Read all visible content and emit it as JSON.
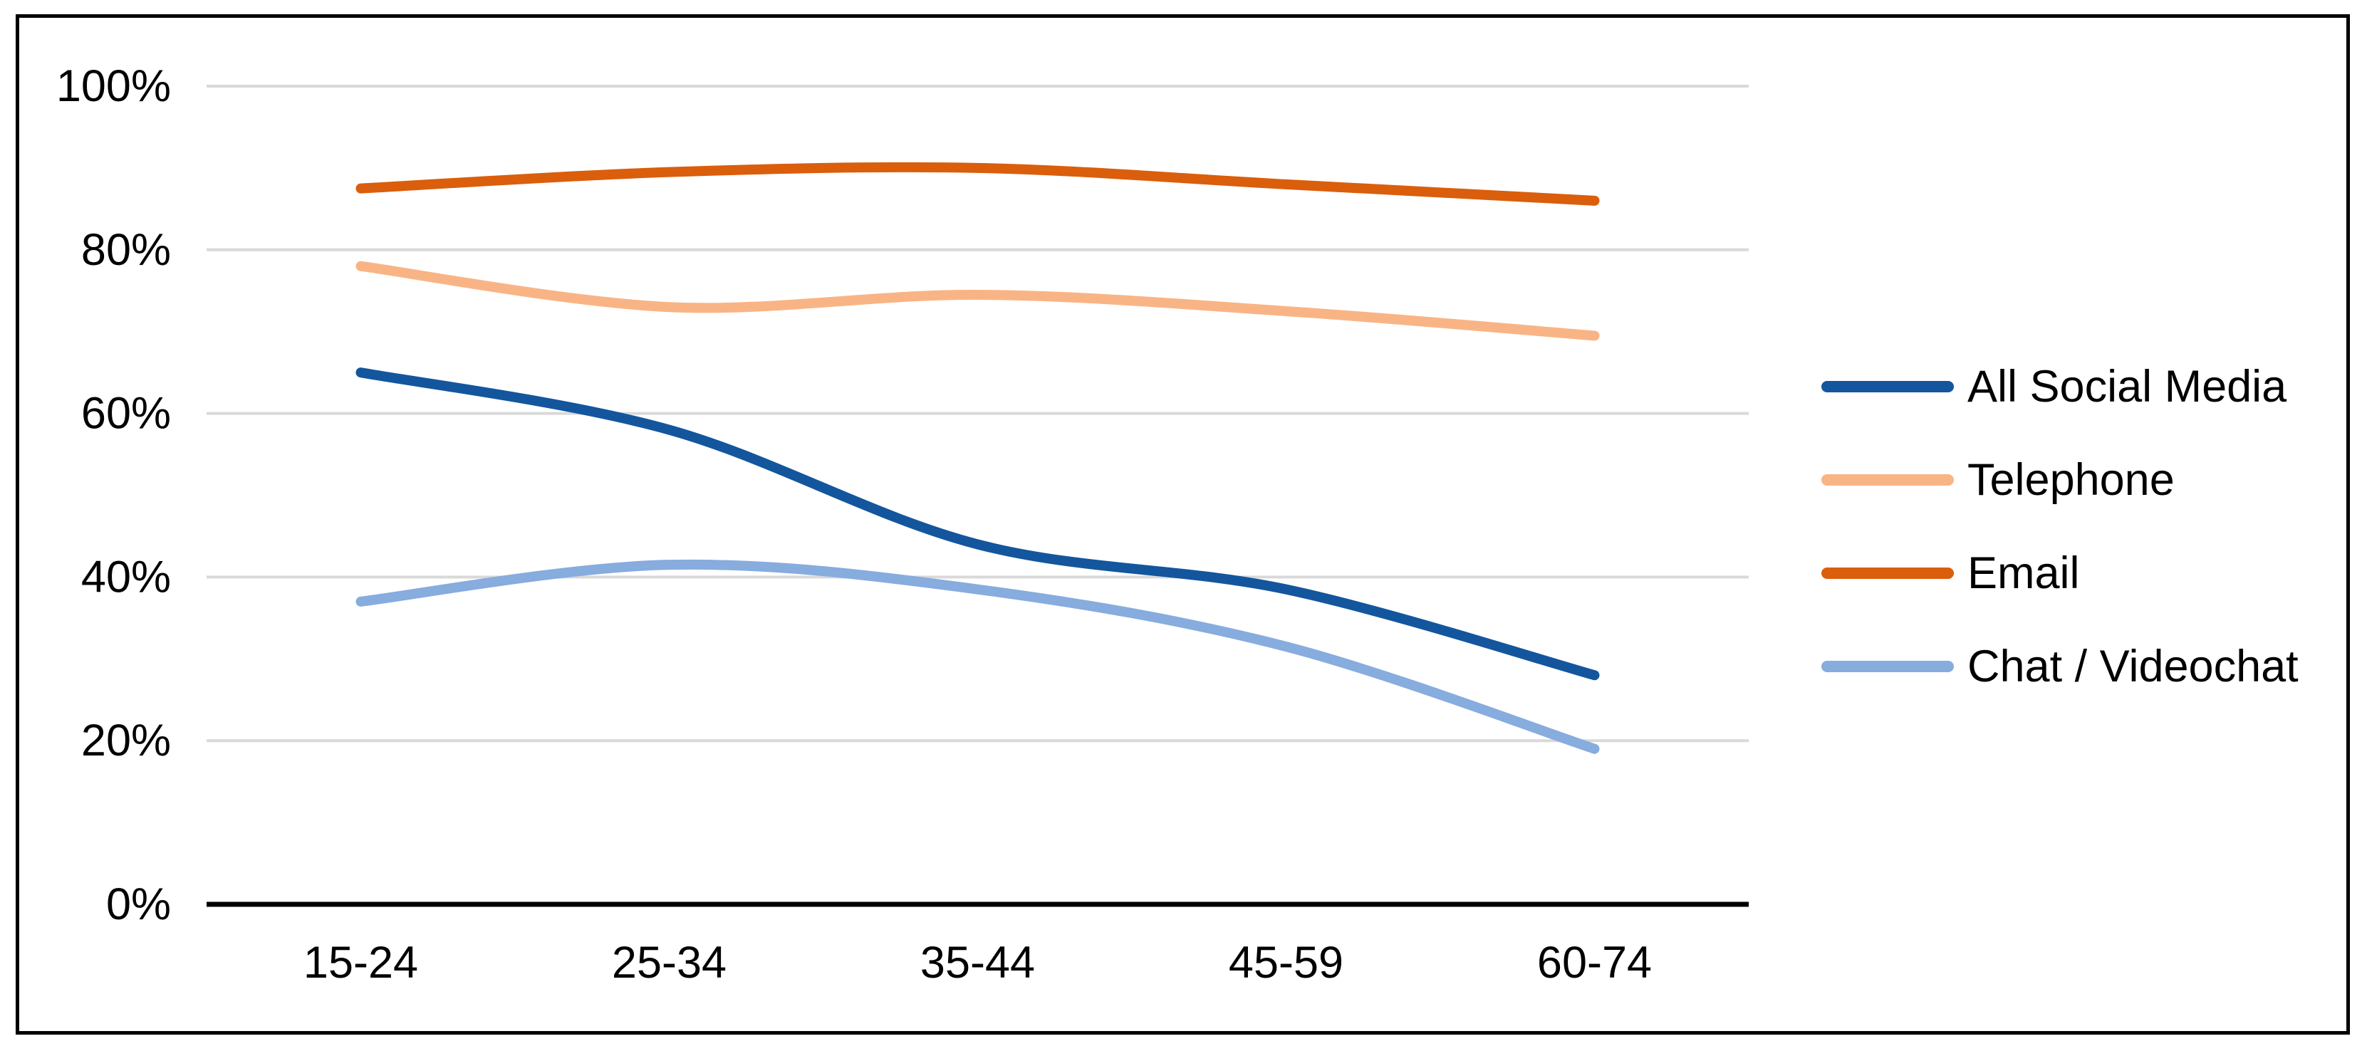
{
  "figure": {
    "background": "#FFFFFF",
    "border_color": "#000000"
  },
  "chart_data": {
    "type": "line",
    "title": "",
    "xlabel": "",
    "ylabel": "",
    "categories": [
      "15-24",
      "25-34",
      "35-44",
      "45-59",
      "60-74"
    ],
    "series": [
      {
        "name": "All Social Media",
        "color": "#13569D",
        "values": [
          65,
          58,
          44,
          38.5,
          28
        ]
      },
      {
        "name": "Telephone",
        "color": "#F9B486",
        "values": [
          78,
          73,
          74.5,
          72.5,
          69.5
        ]
      },
      {
        "name": "Email",
        "color": "#DA5E0C",
        "values": [
          87.5,
          89.5,
          90,
          88,
          86
        ]
      },
      {
        "name": "Chat / Videochat",
        "color": "#87ACDE",
        "values": [
          37,
          41.5,
          38.5,
          31.5,
          19
        ]
      }
    ],
    "ylim": [
      0,
      100
    ],
    "y_ticks": [
      0,
      20,
      40,
      60,
      80,
      100
    ],
    "y_tick_labels": [
      "0%",
      "20%",
      "40%",
      "60%",
      "80%",
      "100%"
    ],
    "grid": "horizontal",
    "gridline_color": "#D9D9D9",
    "axis_color": "#000000",
    "text_color": "#000000",
    "line_style": "smooth",
    "legend_position": "right"
  }
}
